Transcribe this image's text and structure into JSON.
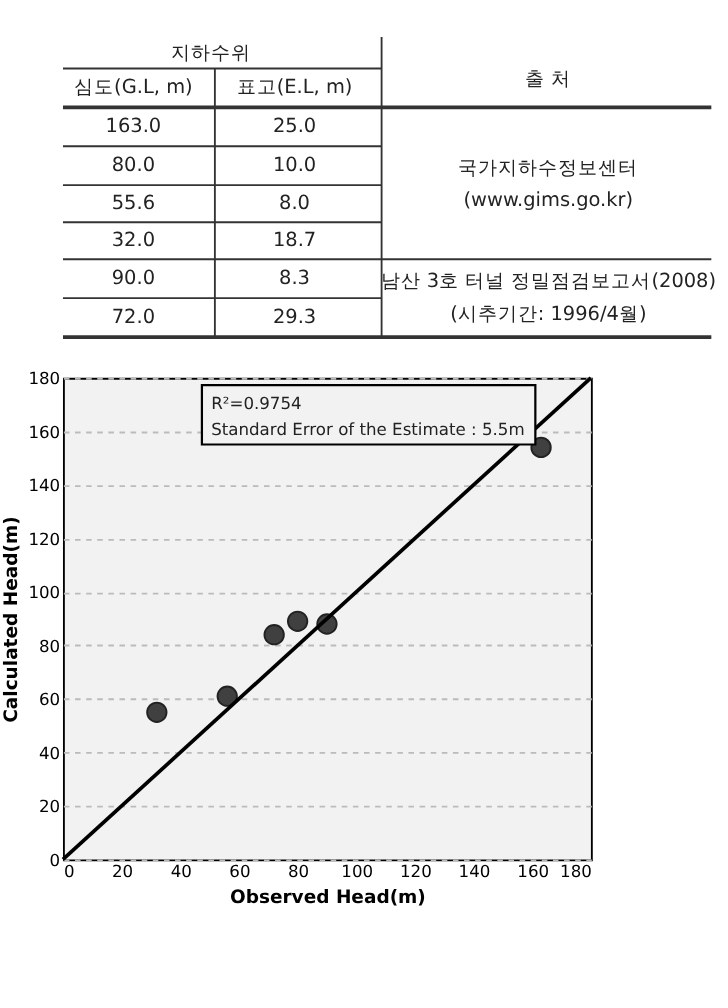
{
  "chart_data": {
    "type": "scatter",
    "xlabel": "Observed Head(m)",
    "ylabel": "Calculated Head(m)",
    "annotations": [
      "지하수위",
      "출 처",
      "심도(G.L, m)",
      "표고(E.L, m)",
      "163.0",
      "25.0",
      "80.0",
      "10.0",
      "55.6",
      "8.0",
      "32.0",
      "18.7",
      "90.0",
      "8.3",
      "72.0",
      "29.3",
      "국가지하수정보센터",
      "(www.gims.go.kr)",
      "남산 3호 터널 정밀점검보고서(2008)",
      "(시추기간: 1996/4월)",
      "R²=0.9754",
      "Standard Error of the Estimate : 5.5m"
    ],
    "series": [
      {
        "color": "#404040",
        "marker": "circle",
        "x": [
          32,
          56,
          72,
          80,
          90,
          163
        ],
        "values": [
          55,
          61,
          84,
          89,
          88,
          154
        ]
      },
      {
        "type": "line",
        "color": "#000000",
        "line_style": "solid",
        "x": [
          0,
          180
        ],
        "values": [
          0,
          180
        ]
      }
    ],
    "xlim": [
      0,
      180
    ],
    "ylim": [
      0,
      180
    ],
    "xticks": [
      0,
      20,
      40,
      60,
      80,
      100,
      120,
      140,
      160,
      180
    ],
    "yticks": [
      0,
      20,
      40,
      60,
      80,
      100,
      120,
      140,
      160,
      180
    ],
    "grid": "y"
  }
}
